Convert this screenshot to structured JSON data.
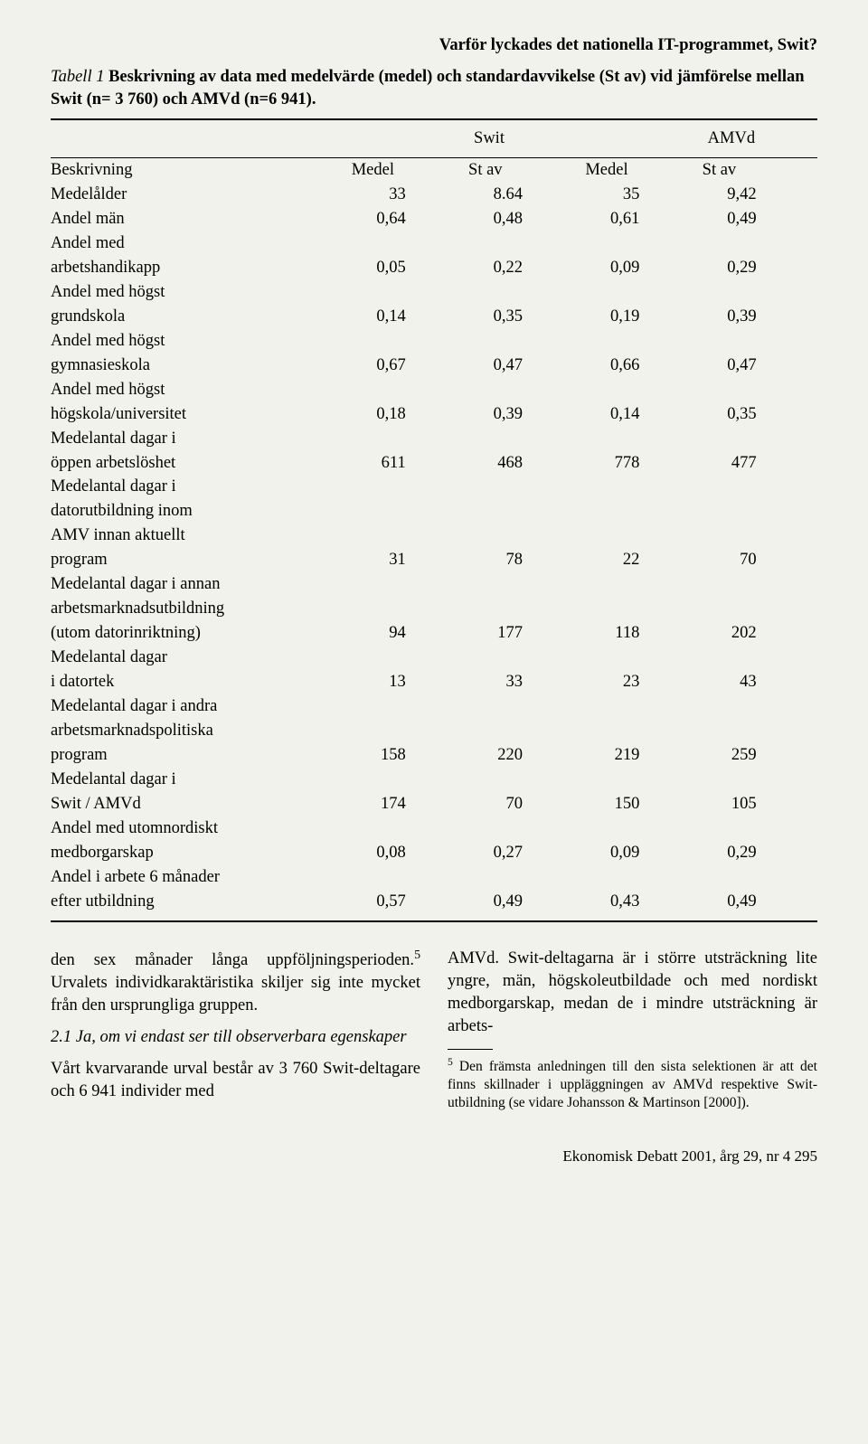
{
  "runningHead": "Varför lyckades det nationella IT-programmet, Swit?",
  "tableTitle": {
    "label": "Tabell 1",
    "text": "Beskrivning av data med medelvärde (medel) och standardavvikelse (St av) vid jämförelse mellan Swit (n= 3 760) och AMVd (n=6 941)."
  },
  "groups": {
    "g1": "Swit",
    "g2": "AMVd"
  },
  "colHead": {
    "c0": "Beskrivning",
    "c1": "Medel",
    "c2": "St av",
    "c3": "Medel",
    "c4": "St av"
  },
  "rows": [
    {
      "desc": [
        "Medelålder"
      ],
      "v": [
        "33",
        "8.64",
        "35",
        "9,42"
      ]
    },
    {
      "desc": [
        "Andel män"
      ],
      "v": [
        "0,64",
        "0,48",
        "0,61",
        "0,49"
      ]
    },
    {
      "desc": [
        "Andel med",
        "arbetshandikapp"
      ],
      "v": [
        "0,05",
        "0,22",
        "0,09",
        "0,29"
      ]
    },
    {
      "desc": [
        "Andel med högst",
        "grundskola"
      ],
      "v": [
        "0,14",
        "0,35",
        "0,19",
        "0,39"
      ]
    },
    {
      "desc": [
        "Andel med högst",
        "gymnasieskola"
      ],
      "v": [
        "0,67",
        "0,47",
        "0,66",
        "0,47"
      ]
    },
    {
      "desc": [
        "Andel med högst",
        "högskola/universitet"
      ],
      "v": [
        "0,18",
        "0,39",
        "0,14",
        "0,35"
      ]
    },
    {
      "desc": [
        "Medelantal dagar i",
        "öppen arbetslöshet"
      ],
      "v": [
        "611",
        "468",
        "778",
        "477"
      ]
    },
    {
      "desc": [
        "Medelantal dagar i",
        "datorutbildning inom",
        "AMV innan aktuellt",
        "program"
      ],
      "v": [
        "31",
        "78",
        "22",
        "70"
      ]
    },
    {
      "desc": [
        "Medelantal dagar i annan",
        " arbetsmarknadsutbildning",
        "(utom datorinriktning)"
      ],
      "v": [
        "94",
        "177",
        "118",
        "202"
      ]
    },
    {
      "desc": [
        "Medelantal dagar",
        "i datortek"
      ],
      "v": [
        "13",
        "33",
        "23",
        "43"
      ]
    },
    {
      "desc": [
        "Medelantal dagar i andra",
        "arbetsmarknadspolitiska",
        "program"
      ],
      "v": [
        "158",
        "220",
        "219",
        "259"
      ]
    },
    {
      "desc": [
        "Medelantal dagar i",
        "Swit / AMVd"
      ],
      "v": [
        "174",
        "70",
        "150",
        "105"
      ]
    },
    {
      "desc": [
        "Andel med utomnordiskt",
        "medborgarskap"
      ],
      "v": [
        "0,08",
        "0,27",
        "0,09",
        "0,29"
      ]
    },
    {
      "desc": [
        "Andel i arbete 6 månader",
        "efter utbildning"
      ],
      "v": [
        "0,57",
        "0,49",
        "0,43",
        "0,49"
      ]
    }
  ],
  "body": {
    "leftP1a": "den sex månader långa uppföljningsperio­den.",
    "leftP1fnref": "5",
    "leftP1b": " Urvalets individkaraktäristika skil­jer sig inte mycket från den ursprungliga gruppen.",
    "leftSubhead": "2.1 Ja, om vi endast ser till observerbara egenskaper",
    "leftP2": "Vårt kvarvarande urval består av 3 760 Swit-deltagare och 6 941 individer med",
    "rightP1": "AMVd. Swit-deltagarna är i större ut­sträckning lite yngre, män, högskoleutbil­dade och med nordiskt medborgarskap, medan de i mindre utsträckning är arbets-",
    "fnNum": "5",
    "fnText": " Den främsta anledningen till den sista selektio­nen är att det finns skillnader i uppläggningen av AMVd respektive Swit-utbildning (se vidare Johansson & Martinson [2000])."
  },
  "pageFoot": "Ekonomisk Debatt 2001, årg 29, nr 4  295",
  "style": {
    "background": "#f2f2ec",
    "text": "#000000",
    "fontFamily": "Georgia, Times New Roman, serif",
    "baseFontSize": 18.5,
    "ruleHeavy": 2.5,
    "ruleThin": 1.2
  }
}
